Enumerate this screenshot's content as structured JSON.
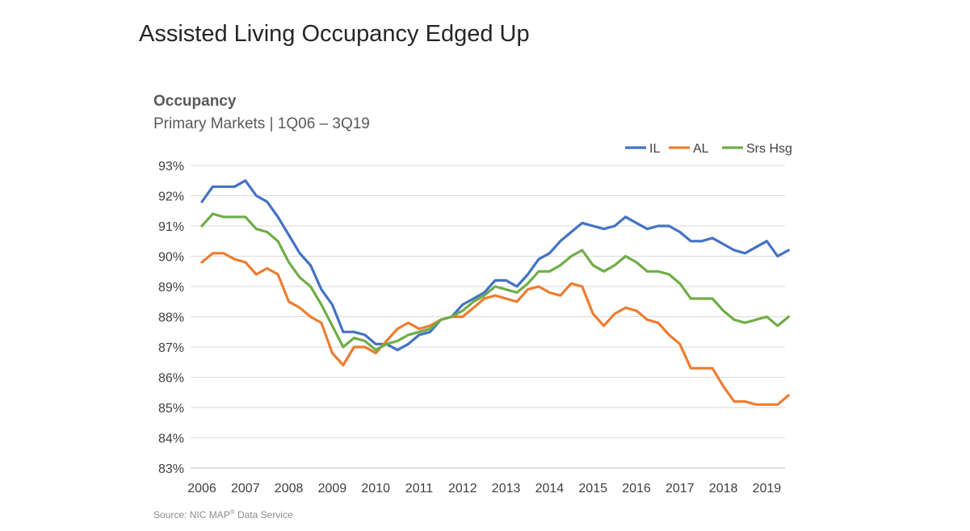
{
  "slide": {
    "title": "Assisted Living Occupancy Edged Up"
  },
  "source": {
    "prefix": "Source: NIC MAP",
    "mark": "®",
    "suffix": " Data Service"
  },
  "chart_data": {
    "type": "line",
    "title": "Occupancy",
    "subtitle": "Primary Markets | 1Q06 – 3Q19",
    "xlabel": "",
    "ylabel": "",
    "ylim": [
      83,
      93
    ],
    "yticks": [
      "83%",
      "84%",
      "85%",
      "86%",
      "87%",
      "88%",
      "89%",
      "90%",
      "91%",
      "92%",
      "93%"
    ],
    "xticks": [
      "2006",
      "2007",
      "2008",
      "2009",
      "2010",
      "2011",
      "2012",
      "2013",
      "2014",
      "2015",
      "2016",
      "2017",
      "2018",
      "2019"
    ],
    "grid": true,
    "legend_position": "top-right",
    "x": [
      "1Q06",
      "2Q06",
      "3Q06",
      "4Q06",
      "1Q07",
      "2Q07",
      "3Q07",
      "4Q07",
      "1Q08",
      "2Q08",
      "3Q08",
      "4Q08",
      "1Q09",
      "2Q09",
      "3Q09",
      "4Q09",
      "1Q10",
      "2Q10",
      "3Q10",
      "4Q10",
      "1Q11",
      "2Q11",
      "3Q11",
      "4Q11",
      "1Q12",
      "2Q12",
      "3Q12",
      "4Q12",
      "1Q13",
      "2Q13",
      "3Q13",
      "4Q13",
      "1Q14",
      "2Q14",
      "3Q14",
      "4Q14",
      "1Q15",
      "2Q15",
      "3Q15",
      "4Q15",
      "1Q16",
      "2Q16",
      "3Q16",
      "4Q16",
      "1Q17",
      "2Q17",
      "3Q17",
      "4Q17",
      "1Q18",
      "2Q18",
      "3Q18",
      "4Q18",
      "1Q19",
      "2Q19",
      "3Q19"
    ],
    "series": [
      {
        "name": "IL",
        "color": "#4472C4",
        "values": [
          91.8,
          92.3,
          92.3,
          92.3,
          92.5,
          92.0,
          91.8,
          91.3,
          90.7,
          90.1,
          89.7,
          88.9,
          88.4,
          87.5,
          87.5,
          87.4,
          87.1,
          87.1,
          86.9,
          87.1,
          87.4,
          87.5,
          87.9,
          88.0,
          88.4,
          88.6,
          88.8,
          89.2,
          89.2,
          89.0,
          89.4,
          89.9,
          90.1,
          90.5,
          90.8,
          91.1,
          91.0,
          90.9,
          91.0,
          91.3,
          91.1,
          90.9,
          91.0,
          91.0,
          90.8,
          90.5,
          90.5,
          90.6,
          90.4,
          90.2,
          90.1,
          90.3,
          90.5,
          90.0,
          90.2
        ]
      },
      {
        "name": "AL",
        "color": "#ED7D31",
        "values": [
          89.8,
          90.1,
          90.1,
          89.9,
          89.8,
          89.4,
          89.6,
          89.4,
          88.5,
          88.3,
          88.0,
          87.8,
          86.8,
          86.4,
          87.0,
          87.0,
          86.8,
          87.2,
          87.6,
          87.8,
          87.6,
          87.7,
          87.9,
          88.0,
          88.0,
          88.3,
          88.6,
          88.7,
          88.6,
          88.5,
          88.9,
          89.0,
          88.8,
          88.7,
          89.1,
          89.0,
          88.1,
          87.7,
          88.1,
          88.3,
          88.2,
          87.9,
          87.8,
          87.4,
          87.1,
          86.3,
          86.3,
          86.3,
          85.7,
          85.2,
          85.2,
          85.1,
          85.1,
          85.1,
          85.4
        ]
      },
      {
        "name": "Srs Hsg",
        "color": "#70AD47",
        "values": [
          91.0,
          91.4,
          91.3,
          91.3,
          91.3,
          90.9,
          90.8,
          90.5,
          89.8,
          89.3,
          89.0,
          88.4,
          87.7,
          87.0,
          87.3,
          87.2,
          86.9,
          87.1,
          87.2,
          87.4,
          87.5,
          87.6,
          87.9,
          88.0,
          88.2,
          88.5,
          88.7,
          89.0,
          88.9,
          88.8,
          89.1,
          89.5,
          89.5,
          89.7,
          90.0,
          90.2,
          89.7,
          89.5,
          89.7,
          90.0,
          89.8,
          89.5,
          89.5,
          89.4,
          89.1,
          88.6,
          88.6,
          88.6,
          88.2,
          87.9,
          87.8,
          87.9,
          88.0,
          87.7,
          88.0
        ]
      }
    ]
  }
}
